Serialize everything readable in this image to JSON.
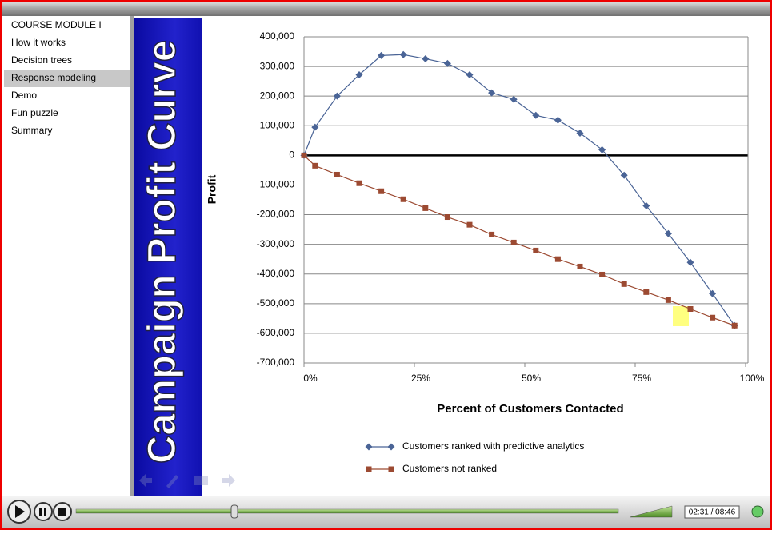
{
  "menu": {
    "title": "COURSE MODULE I",
    "items": [
      "How it works",
      "Decision trees",
      "Response modeling",
      "Demo",
      "Fun puzzle",
      "Summary"
    ],
    "selected": 2
  },
  "slide_title": "Campaign Profit Curve",
  "chart_data": {
    "type": "line",
    "x_label": "Percent of Customers Contacted",
    "y_label": "Profit",
    "x": [
      0,
      2.5,
      7.5,
      12.5,
      17.5,
      22.5,
      27.5,
      32.5,
      37.5,
      42.5,
      47.5,
      52.5,
      57.5,
      62.5,
      67.5,
      72.5,
      77.5,
      82.5,
      87.5,
      92.5,
      97.5
    ],
    "series": [
      {
        "name": "Customers ranked with predictive analytics",
        "color": "#4a6496",
        "marker": "diamond",
        "values": [
          0,
          95000,
          200000,
          272000,
          337000,
          340000,
          326000,
          310000,
          272000,
          211000,
          189000,
          135000,
          119000,
          75000,
          19000,
          -67000,
          -170000,
          -264000,
          -361000,
          -466000,
          -574000
        ]
      },
      {
        "name": "Customers not ranked",
        "color": "#9c4a32",
        "marker": "square",
        "values": [
          0,
          -35000,
          -65000,
          -94000,
          -121000,
          -148000,
          -178000,
          -208000,
          -234000,
          -267000,
          -294000,
          -321000,
          -350000,
          -375000,
          -402000,
          -434000,
          -461000,
          -488000,
          -518000,
          -547000,
          -574000
        ]
      }
    ],
    "xlim": [
      0,
      100
    ],
    "xticks": [
      {
        "value": 0,
        "label": "0%"
      },
      {
        "value": 25,
        "label": "25%"
      },
      {
        "value": 50,
        "label": "50%"
      },
      {
        "value": 75,
        "label": "75%"
      },
      {
        "value": 100,
        "label": "100%"
      }
    ],
    "ylim": [
      -700000,
      400000
    ],
    "yticks": [
      {
        "value": -700000,
        "label": "-700,000"
      },
      {
        "value": -600000,
        "label": "-600,000"
      },
      {
        "value": -500000,
        "label": "-500,000"
      },
      {
        "value": -400000,
        "label": "-400,000"
      },
      {
        "value": -300000,
        "label": "-300,000"
      },
      {
        "value": -200000,
        "label": "-200,000"
      },
      {
        "value": -100000,
        "label": "-100,000"
      },
      0,
      {
        "value": 100000,
        "label": "100,000"
      },
      {
        "value": 200000,
        "label": "200,000"
      },
      {
        "value": 300000,
        "label": "300,000"
      },
      {
        "value": 400000,
        "label": "400,000"
      }
    ],
    "grid": true
  },
  "player": {
    "time": "02:31 / 08:46"
  }
}
